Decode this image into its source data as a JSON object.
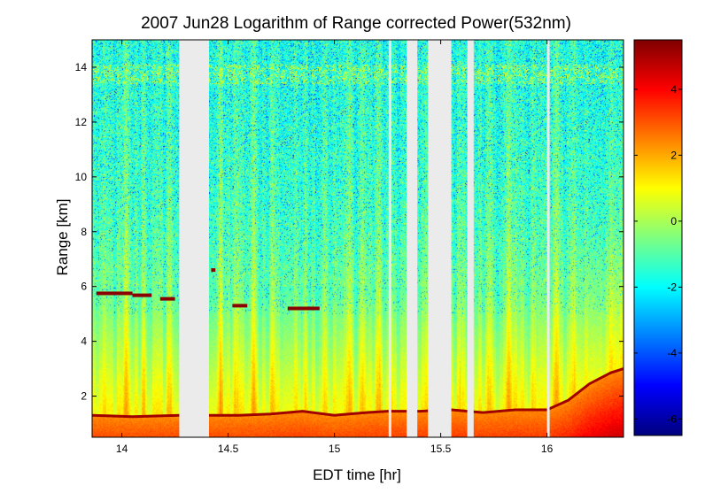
{
  "chart_data": {
    "type": "heatmap",
    "title": "2007 Jun28  Logarithm of Range corrected Power(532nm)",
    "xlabel": "EDT time [hr]",
    "ylabel": "Range [km]",
    "xlim": [
      13.86,
      16.36
    ],
    "ylim": [
      0.5,
      15.0
    ],
    "xticks": [
      14,
      14.5,
      15,
      15.5,
      16
    ],
    "xtick_labels": [
      "14",
      "14.5",
      "15",
      "15.5",
      "16"
    ],
    "yticks": [
      2,
      4,
      6,
      8,
      10,
      12,
      14
    ],
    "ytick_labels": [
      "2",
      "4",
      "6",
      "8",
      "10",
      "12",
      "14"
    ],
    "colorbar": {
      "colormap": "jet",
      "clim": [
        -6.5,
        5.5
      ],
      "ticks": [
        -6,
        -4,
        -2,
        0,
        2,
        4
      ],
      "tick_labels": [
        "-6",
        "-4",
        "-2",
        "0",
        "2",
        "4"
      ]
    },
    "data_gaps_hr": [
      [
        14.27,
        14.41
      ],
      [
        15.255,
        15.265
      ],
      [
        15.34,
        15.39
      ],
      [
        15.44,
        15.55
      ],
      [
        15.625,
        15.655
      ],
      [
        16.0,
        16.01
      ]
    ],
    "cloud_layers": [
      {
        "x": [
          13.88,
          14.05
        ],
        "range_km": 5.75
      },
      {
        "x": [
          14.05,
          14.14
        ],
        "range_km": 5.68
      },
      {
        "x": [
          14.18,
          14.25
        ],
        "range_km": 5.55
      },
      {
        "x": [
          14.42,
          14.44
        ],
        "range_km": 6.6
      },
      {
        "x": [
          14.52,
          14.59
        ],
        "range_km": 5.3
      },
      {
        "x": [
          14.78,
          14.93
        ],
        "range_km": 5.2
      }
    ],
    "boundary_layer_top_km": [
      [
        13.86,
        1.3
      ],
      [
        14.05,
        1.25
      ],
      [
        14.27,
        1.3
      ],
      [
        14.41,
        1.3
      ],
      [
        14.55,
        1.3
      ],
      [
        14.7,
        1.35
      ],
      [
        14.85,
        1.45
      ],
      [
        15.0,
        1.3
      ],
      [
        15.15,
        1.4
      ],
      [
        15.25,
        1.45
      ],
      [
        15.4,
        1.45
      ],
      [
        15.55,
        1.5
      ],
      [
        15.7,
        1.4
      ],
      [
        15.85,
        1.5
      ],
      [
        16.0,
        1.5
      ],
      [
        16.1,
        1.85
      ],
      [
        16.2,
        2.45
      ],
      [
        16.3,
        2.85
      ],
      [
        16.36,
        3.0
      ]
    ],
    "grid": false,
    "legend": "none"
  }
}
